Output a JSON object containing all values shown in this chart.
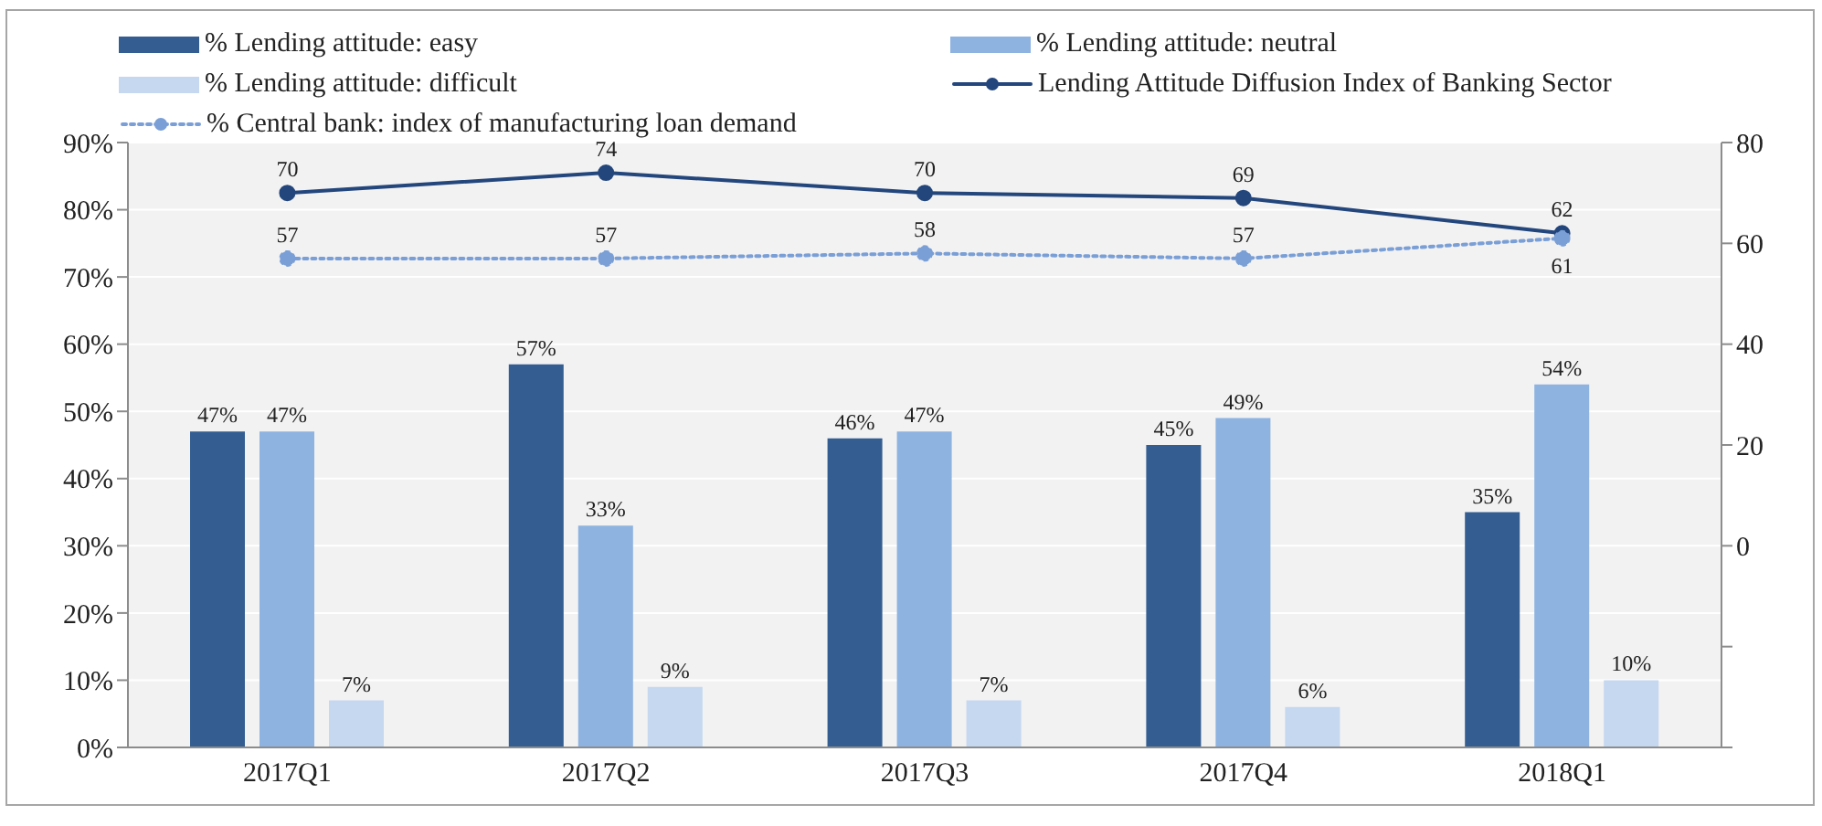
{
  "chart_data": {
    "type": "bar",
    "categories": [
      "2017Q1",
      "2017Q2",
      "2017Q3",
      "2017Q4",
      "2018Q1"
    ],
    "series": [
      {
        "name": "% Lending attitude: easy",
        "color": "#345e91",
        "values": [
          47,
          57,
          46,
          45,
          35
        ],
        "value_labels": [
          "47%",
          "57%",
          "46%",
          "45%",
          "35%"
        ]
      },
      {
        "name": "% Lending attitude: neutral",
        "color": "#8eb3e0",
        "values": [
          47,
          33,
          47,
          49,
          54
        ],
        "value_labels": [
          "47%",
          "33%",
          "47%",
          "49%",
          "54%"
        ]
      },
      {
        "name": "% Lending attitude: difficult",
        "color": "#c5d8f0",
        "values": [
          7,
          9,
          7,
          6,
          10
        ],
        "value_labels": [
          "7%",
          "9%",
          "7%",
          "6%",
          "10%"
        ]
      },
      {
        "name": "Lending Attitude Diffusion Index of Banking Sector",
        "type": "line",
        "axis": "y2",
        "color": "#23467c",
        "marker": "circle",
        "line_style": "solid",
        "values": [
          70,
          74,
          70,
          69,
          62
        ],
        "value_labels": [
          "70",
          "74",
          "70",
          "69",
          "62"
        ]
      },
      {
        "name": "% Central bank: index of manufacturing loan demand",
        "type": "line",
        "axis": "y2",
        "color": "#7a9fd6",
        "marker": "circle",
        "line_style": "dotted",
        "values": [
          57,
          57,
          58,
          57,
          61
        ],
        "value_labels": [
          "57",
          "57",
          "58",
          "57",
          "61"
        ]
      }
    ],
    "ylim": [
      0,
      90
    ],
    "yticks": [
      {
        "value": 0,
        "label": "0%"
      },
      {
        "value": 10,
        "label": "10%"
      },
      {
        "value": 20,
        "label": "20%"
      },
      {
        "value": 30,
        "label": "30%"
      },
      {
        "value": 40,
        "label": "40%"
      },
      {
        "value": 50,
        "label": "50%"
      },
      {
        "value": 60,
        "label": "60%"
      },
      {
        "value": 70,
        "label": "70%"
      },
      {
        "value": 80,
        "label": "80%"
      },
      {
        "value": 90,
        "label": "90%"
      }
    ],
    "y2lim": [
      -40,
      80
    ],
    "y2ticks": [
      {
        "value": -40,
        "label": null
      },
      {
        "value": -20,
        "label": null
      },
      0,
      20,
      40,
      60,
      80
    ],
    "grid": "y",
    "legend": "top"
  }
}
